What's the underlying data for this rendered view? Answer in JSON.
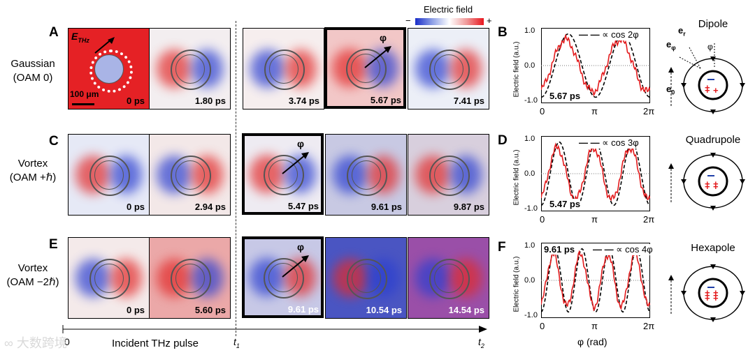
{
  "colorbar": {
    "title": "Electric field",
    "minus": "−",
    "plus": "+",
    "neg_color": "#1a2ec8",
    "pos_color": "#e8161d"
  },
  "rows": [
    {
      "label": "A",
      "title_line1": "Gaussian",
      "title_line2": "(OAM 0)",
      "panels": [
        {
          "time": "0 ps",
          "bg": "#e52125",
          "ts_color": "#000"
        },
        {
          "time": "1.80 ps",
          "bg": "#f3eef0",
          "ts_color": "#000"
        },
        {
          "time": "3.74 ps",
          "bg": "#f6eeee",
          "ts_color": "#000"
        },
        {
          "time": "5.67 ps",
          "bg": "#f2c7c7",
          "ts_color": "#000"
        },
        {
          "time": "7.41 ps",
          "bg": "#eceff7",
          "ts_color": "#000"
        }
      ]
    },
    {
      "label": "C",
      "title_line1": "Vortex",
      "title_line2": "(OAM +ℏ)",
      "panels": [
        {
          "time": "0 ps",
          "bg": "#e6e9f6",
          "ts_color": "#000"
        },
        {
          "time": "2.94 ps",
          "bg": "#f3e8e8",
          "ts_color": "#000"
        },
        {
          "time": "5.47 ps",
          "bg": "#eeebf2",
          "ts_color": "#000"
        },
        {
          "time": "9.61 ps",
          "bg": "#c8c9e3",
          "ts_color": "#000"
        },
        {
          "time": "9.87 ps",
          "bg": "#d8cfdd",
          "ts_color": "#000"
        }
      ]
    },
    {
      "label": "E",
      "title_line1": "Vortex",
      "title_line2": "(OAM −2ℏ)",
      "panels": [
        {
          "time": "0 ps",
          "bg": "#f4eaea",
          "ts_color": "#000"
        },
        {
          "time": "5.60 ps",
          "bg": "#eba8a8",
          "ts_color": "#000"
        },
        {
          "time": "9.61 ps",
          "bg": "#c7c8e6",
          "ts_color": "#fff"
        },
        {
          "time": "10.54 ps",
          "bg": "#4a55c2",
          "ts_color": "#fff"
        },
        {
          "time": "14.54 ps",
          "bg": "#9a4fa8",
          "ts_color": "#fff"
        }
      ]
    }
  ],
  "annotations": {
    "e_thz": "E",
    "e_thz_sub": "THz",
    "scale_bar": "100 μm",
    "phi": "φ"
  },
  "axis": {
    "t0": "0",
    "incident": "Incident THz pulse",
    "t1": "t",
    "t1_sub": "1",
    "t2": "t",
    "t2_sub": "2"
  },
  "plots": [
    {
      "label": "B",
      "time": "5.67 ps",
      "legend": "∝ cos 2φ",
      "ylabel": "Electric field (a.u.)",
      "yticks": [
        "1.0",
        "0.0",
        "-1.0"
      ],
      "xticks": [
        "0",
        "π",
        "2π"
      ],
      "n": 2
    },
    {
      "label": "D",
      "time": "5.47 ps",
      "legend": "∝ cos 3φ",
      "ylabel": "Electric field (a.u.)",
      "yticks": [
        "1.0",
        "0.0",
        "-1.0"
      ],
      "xticks": [
        "0",
        "π",
        "2π"
      ],
      "n": 3
    },
    {
      "label": "F",
      "time": "9.61 ps",
      "legend": "∝ cos 4φ",
      "ylabel": "Electric field (a.u.)",
      "yticks": [
        "1.0",
        "0.0",
        "-1.0"
      ],
      "xticks": [
        "0",
        "π",
        "2π"
      ],
      "n": 4
    }
  ],
  "plot_xlabel": "φ (rad)",
  "cartoons": [
    {
      "title": "Dipole",
      "er": "e",
      "er_sub": "r",
      "ephi": "e",
      "ephi_sub": "φ",
      "phi": "φ",
      "e0": "e",
      "e0_sub": "0"
    },
    {
      "title": "Quadrupole"
    },
    {
      "title": "Hexapole"
    }
  ],
  "watermark": "大数跨境"
}
